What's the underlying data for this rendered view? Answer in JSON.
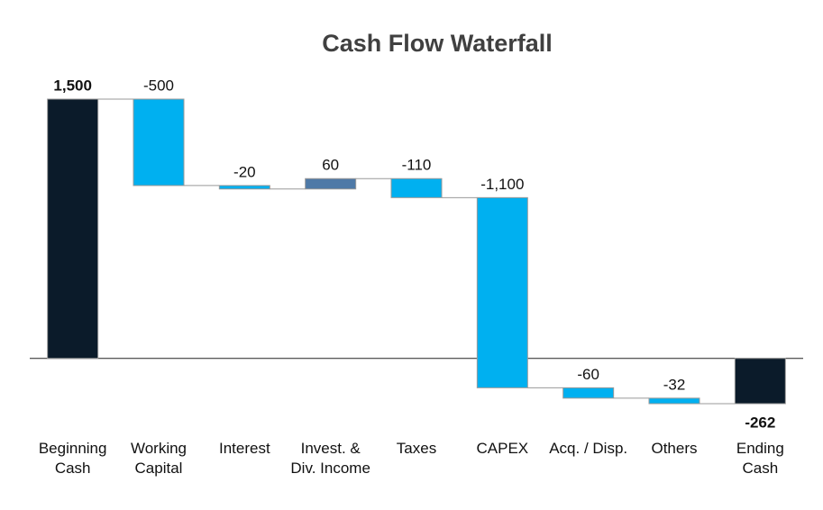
{
  "chart_data": {
    "type": "waterfall",
    "title": "Cash Flow Waterfall",
    "categories": [
      [
        "Beginning",
        "Cash"
      ],
      [
        "Working",
        "Capital"
      ],
      [
        "Interest"
      ],
      [
        "Invest. &",
        "Div. Income"
      ],
      [
        "Taxes"
      ],
      [
        "CAPEX"
      ],
      [
        "Acq. / Disp."
      ],
      [
        "Others"
      ],
      [
        "Ending",
        "Cash"
      ]
    ],
    "values": [
      1500,
      -500,
      -20,
      60,
      -110,
      -1100,
      -60,
      -32,
      -262
    ],
    "value_labels": [
      "1,500",
      "-500",
      "-20",
      "60",
      "-110",
      "-1,100",
      "-60",
      "-32",
      "-262"
    ],
    "is_total": [
      true,
      false,
      false,
      false,
      false,
      false,
      false,
      false,
      true
    ],
    "colors": {
      "total": "#0b1b2a",
      "increase": "#4e79a7",
      "decrease": "#00b0f0"
    }
  }
}
